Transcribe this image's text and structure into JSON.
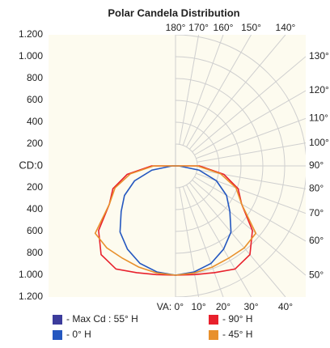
{
  "chart_data": {
    "type": "polar",
    "title": "Polar Candela Distribution",
    "origin_label": "CD:0",
    "angles": [
      0,
      10,
      20,
      30,
      40,
      50,
      60,
      70,
      80,
      90,
      100,
      110,
      120,
      130,
      140,
      150,
      160,
      170,
      180
    ],
    "rlim": [
      0,
      1200
    ],
    "yticks_upper": [
      {
        "value": 1200,
        "label": "1.200"
      },
      {
        "value": 1000,
        "label": "1.000"
      },
      800,
      600,
      400,
      200
    ],
    "yticks_lower": [
      200,
      400,
      600,
      800,
      {
        "value": 1000,
        "label": "1.000"
      },
      {
        "value": 1200,
        "label": "1.200"
      }
    ],
    "angle_ticks": [
      {
        "value": 180,
        "label": "180°"
      },
      {
        "value": 170,
        "label": "170°"
      },
      {
        "value": 160,
        "label": "160°"
      },
      {
        "value": 150,
        "label": "150°"
      },
      {
        "value": 140,
        "label": "140°"
      },
      {
        "value": 130,
        "label": "130°"
      },
      {
        "value": 120,
        "label": "120°"
      },
      {
        "value": 110,
        "label": "110°"
      },
      {
        "value": 100,
        "label": "100°"
      },
      {
        "value": 90,
        "label": "90°"
      },
      {
        "value": 80,
        "label": "80°"
      },
      {
        "value": 70,
        "label": "70°"
      },
      {
        "value": 60,
        "label": "60°"
      },
      {
        "value": 50,
        "label": "50°"
      },
      {
        "value": 40,
        "label": "40°"
      },
      {
        "value": 30,
        "label": "30°"
      },
      {
        "value": 20,
        "label": "20°"
      },
      {
        "value": 10,
        "label": "10°"
      },
      {
        "value": 0,
        "label": "VA: 0°"
      }
    ],
    "series": [
      {
        "name": "- Max Cd : 55° H",
        "color": "#3c3c9c"
      },
      {
        "name": "- 90° H",
        "color": "#e8202c",
        "values": [
          1000,
          1010,
          1040,
          1090,
          1060,
          920,
          700,
          610,
          450,
          220,
          0,
          0,
          0,
          0,
          0,
          0,
          0,
          0,
          0
        ]
      },
      {
        "name": "- 0° H",
        "color": "#2457c0",
        "values": [
          1000,
          985,
          950,
          880,
          790,
          650,
          540,
          400,
          220,
          30,
          0,
          0,
          0,
          0,
          0,
          0,
          0,
          0,
          0
        ]
      },
      {
        "name": "- 45° H",
        "color": "#e8902c",
        "values": [
          1000,
          995,
          985,
          975,
          980,
          960,
          700,
          590,
          420,
          200,
          0,
          0,
          0,
          0,
          0,
          0,
          0,
          0,
          0
        ]
      }
    ]
  }
}
